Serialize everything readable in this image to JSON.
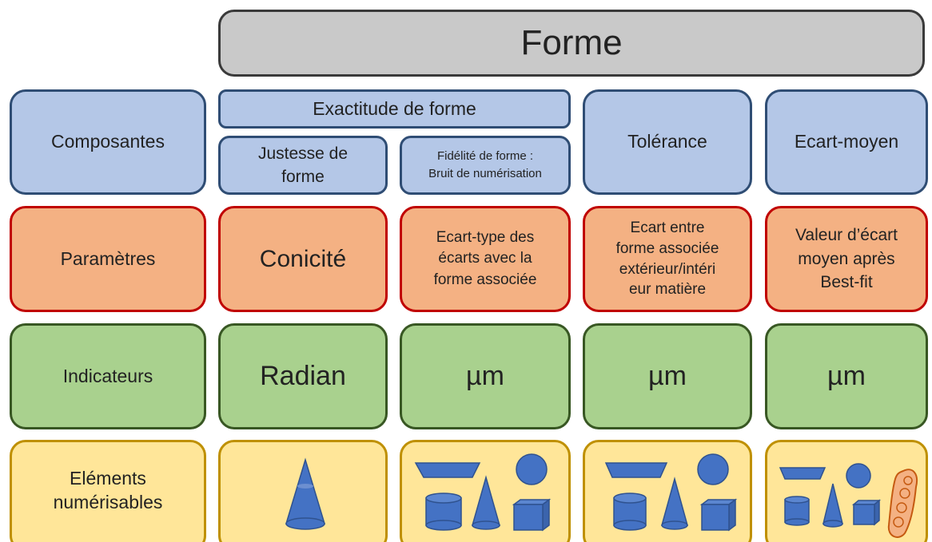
{
  "header": {
    "title": "Forme"
  },
  "components": {
    "label": "Composantes",
    "exactitude": "Exactitude de forme",
    "justesse": "Justesse de\nforme",
    "fidelite": "Fidélité de forme :\nBruit de numérisation",
    "tolerance": "Tolérance",
    "ecart": "Ecart-moyen"
  },
  "parameters": {
    "label": "Paramètres",
    "values": [
      "Conicité",
      "Ecart-type des\nécarts avec la\nforme associée",
      "Ecart entre\nforme associée\nextérieur/intéri\neur matière",
      "Valeur d’écart\nmoyen après\nBest-fit"
    ]
  },
  "indicators": {
    "label": "Indicateurs",
    "values": [
      "Radian",
      "µm",
      "µm",
      "µm"
    ]
  },
  "elements": {
    "label": "Eléments\nnumérisables"
  }
}
